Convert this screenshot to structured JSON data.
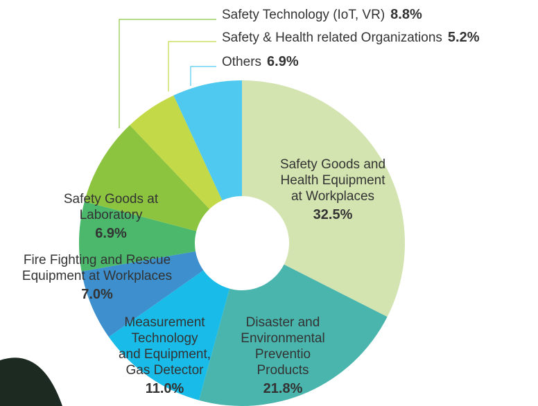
{
  "chart_data": {
    "type": "pie",
    "categories": [
      "Safety Goods and\nHealth Equipment\nat Workplaces",
      "Disaster and\nEnvironmental\nPreventio\nProducts",
      "Measurement\nTechnology\nand Equipment,\nGas Detector",
      "Fire Fighting and Rescue\nEquipment at Workplaces",
      "Safety Goods at\nLaboratory",
      "Safety Technology (IoT, VR)",
      "Safety & Health related Organizations",
      "Others"
    ],
    "values": [
      32.5,
      21.8,
      11.0,
      7.0,
      6.9,
      8.8,
      5.2,
      6.9
    ],
    "value_labels": [
      "32.5%",
      "21.8%",
      "11.0%",
      "7.0%",
      "6.9%",
      "8.8%",
      "5.2%",
      "6.9%"
    ],
    "colors": [
      "#d3e4b1",
      "#4ab5ad",
      "#19bbe9",
      "#3e8fcd",
      "#4bb86c",
      "#8cc43f",
      "#c3d947",
      "#4fc9ef"
    ]
  }
}
